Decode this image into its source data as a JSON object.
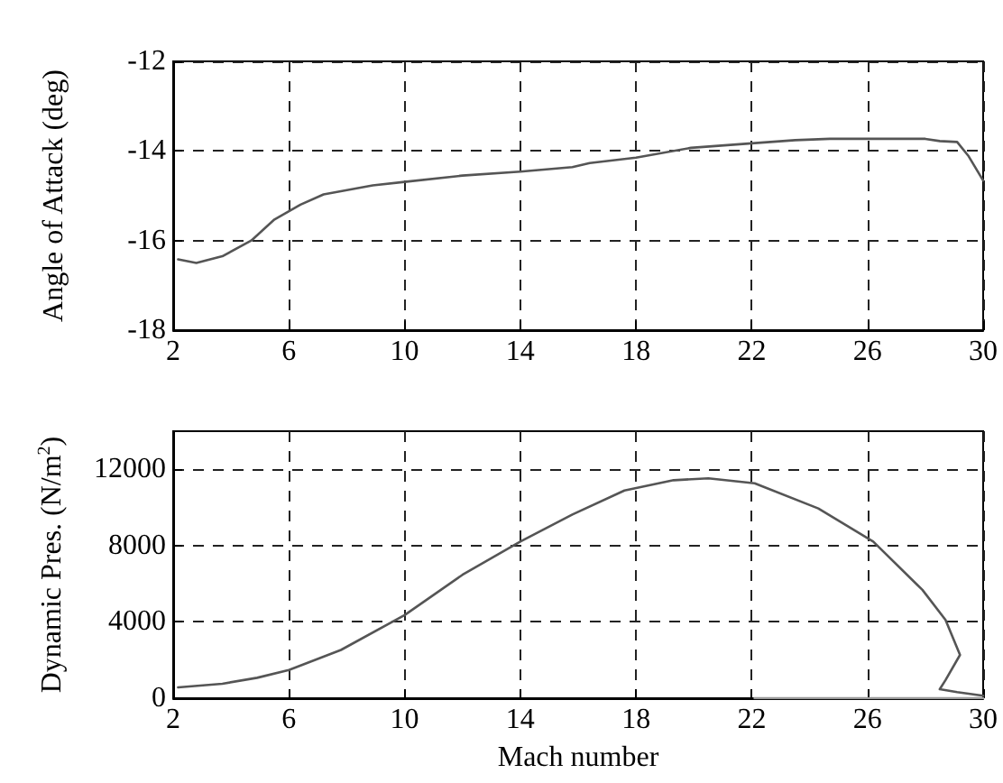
{
  "chart_data": [
    {
      "type": "line",
      "ylabel": "Angle of Attack (deg)",
      "xlim": [
        2,
        30
      ],
      "xticks": [
        2,
        6,
        10,
        14,
        18,
        22,
        26,
        30
      ],
      "ylim": [
        -18,
        -12
      ],
      "yticks": [
        -18,
        -16,
        -14,
        -12
      ],
      "grid": true,
      "line_style": "solid",
      "marker": "none",
      "series": [
        {
          "color": "#555555",
          "x": [
            2.17,
            2.8,
            3.7,
            4.7,
            5.5,
            6.4,
            7.2,
            8.9,
            10,
            12,
            14,
            15.8,
            16.4,
            18,
            19.9,
            22,
            23.5,
            24.7,
            28,
            28.5,
            29.1,
            29.5,
            30
          ],
          "values": [
            -16.42,
            -16.5,
            -16.35,
            -16.0,
            -15.53,
            -15.2,
            -14.97,
            -14.77,
            -14.69,
            -14.55,
            -14.46,
            -14.36,
            -14.27,
            -14.15,
            -13.93,
            -13.83,
            -13.76,
            -13.73,
            -13.73,
            -13.78,
            -13.8,
            -14.12,
            -14.66
          ]
        }
      ]
    },
    {
      "type": "line",
      "xlabel": "Mach number",
      "ylabel": "Dynamic Pres. (N/m$^{2}$)",
      "xlim": [
        2,
        30
      ],
      "xticks": [
        2,
        6,
        10,
        14,
        18,
        22,
        26,
        30
      ],
      "ylim": [
        0,
        14000
      ],
      "yticks": [
        0,
        4000,
        8000,
        12000
      ],
      "grid": true,
      "line_style": "solid",
      "marker": "none",
      "series": [
        {
          "color": "#555555",
          "x": [
            2.17,
            3.7,
            4.9,
            6,
            7.8,
            10,
            12,
            14,
            15.8,
            17.6,
            19.3,
            20.5,
            22.1,
            24.3,
            26.2,
            27.9,
            28.7,
            29.2,
            28.7,
            28.5,
            29.1,
            30
          ],
          "values": [
            570,
            760,
            1070,
            1480,
            2530,
            4360,
            6470,
            8210,
            9630,
            10890,
            11430,
            11530,
            11270,
            9950,
            8210,
            5680,
            4100,
            2270,
            950,
            470,
            320,
            130
          ]
        },
        {
          "color": "#999999",
          "x": [
            22.1,
            30
          ],
          "values": [
            0,
            0
          ]
        }
      ]
    }
  ]
}
